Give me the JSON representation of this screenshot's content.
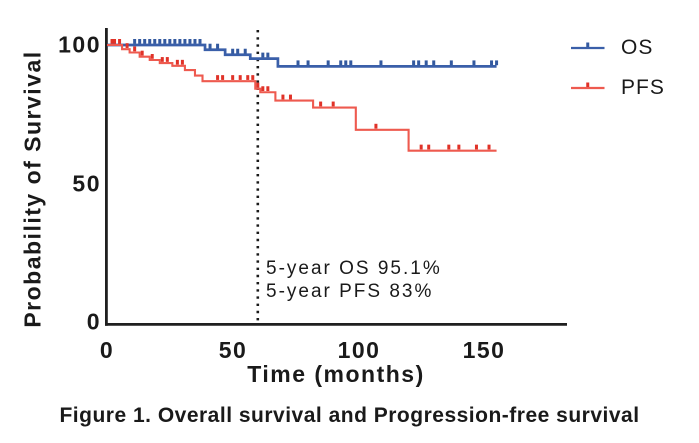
{
  "figure": {
    "caption": "Figure 1. Overall survival and Progression-free survival"
  },
  "chart_data": {
    "type": "line",
    "subtype": "kaplan-meier-step-curves",
    "title": "Figure 1. Overall survival and Progression-free survival",
    "xlabel": "Time (months)",
    "ylabel": "Probability of Survival",
    "xlim": [
      0,
      183
    ],
    "ylim": [
      0,
      106
    ],
    "xticks": [
      0,
      50,
      100,
      150
    ],
    "xtick_labels": [
      "0",
      "50",
      "100",
      "150"
    ],
    "yticks": [
      100,
      50,
      0
    ],
    "ytick_labels": [
      "100",
      "50",
      "0"
    ],
    "grid": false,
    "legend_position": "top-right",
    "reference_line": {
      "x": 60,
      "style": "dotted",
      "color": "#1a1a1a"
    },
    "annotations": [
      "5-year OS 95.1%",
      "5-year PFS 83%"
    ],
    "annotation_values": {
      "five_year_os_pct": 95.1,
      "five_year_pfs_pct": 83
    },
    "series": [
      {
        "name": "OS",
        "color": "#3A5FA9",
        "censor_color": "#33599F",
        "steps": [
          [
            0,
            100
          ],
          [
            39,
            98.3
          ],
          [
            47,
            96.5
          ],
          [
            57,
            95.1
          ],
          [
            68,
            92.3
          ],
          [
            155,
            92.3
          ]
        ],
        "censor_times": [
          11,
          13,
          15,
          17,
          19,
          21,
          23,
          25,
          27,
          29,
          31,
          33,
          35,
          37,
          41,
          44,
          50,
          52,
          55,
          62,
          64,
          76,
          80,
          88,
          93,
          95,
          97,
          109,
          122,
          124,
          127,
          130,
          137,
          146,
          153,
          155
        ]
      },
      {
        "name": "PFS",
        "color": "#EE5A4F",
        "censor_color": "#E03228",
        "steps": [
          [
            0,
            100
          ],
          [
            6,
            98.5
          ],
          [
            9,
            97.3
          ],
          [
            13,
            95.8
          ],
          [
            17,
            94.6
          ],
          [
            21,
            93.5
          ],
          [
            26,
            92.5
          ],
          [
            31,
            91
          ],
          [
            35,
            89
          ],
          [
            38,
            87
          ],
          [
            59,
            84.3
          ],
          [
            61,
            83
          ],
          [
            67,
            80
          ],
          [
            82,
            77.5
          ],
          [
            99,
            69.5
          ],
          [
            120,
            62
          ],
          [
            155,
            62
          ]
        ],
        "censor_times": [
          2,
          3,
          5,
          8,
          11,
          14,
          18,
          22,
          24,
          28,
          30,
          44,
          46,
          50,
          53,
          56,
          58,
          60,
          62,
          64,
          70,
          73,
          85,
          90,
          107,
          125,
          128,
          136,
          140,
          147,
          152
        ]
      }
    ]
  }
}
